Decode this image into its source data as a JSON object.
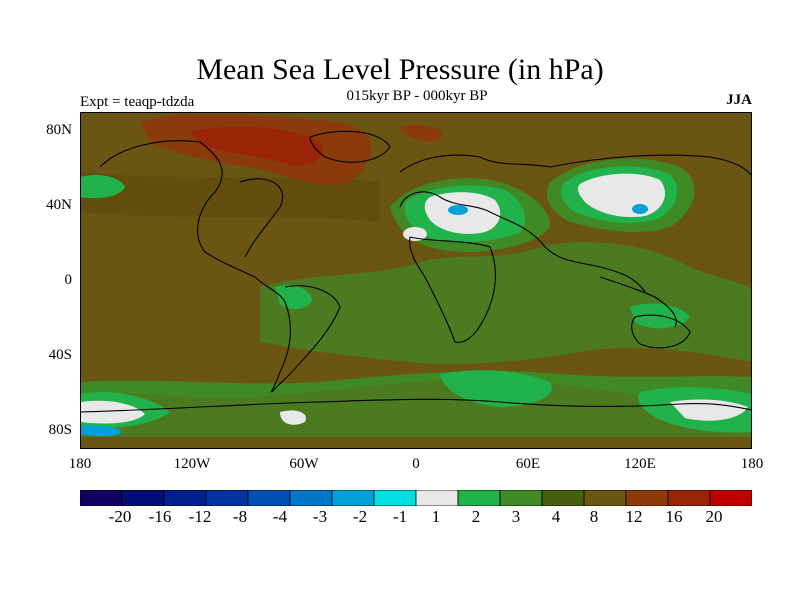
{
  "map": {
    "title": "Mean Sea Level Pressure (in hPa)",
    "subtitle": "015kyr BP - 000kyr BP",
    "experiment_label": "Expt = teaqp-tdzda",
    "season_label": "JJA",
    "lat_labels": [
      "80N",
      "40N",
      "0",
      "40S",
      "80S"
    ],
    "lon_labels": [
      "180",
      "120W",
      "60W",
      "0",
      "60E",
      "120E",
      "180"
    ],
    "colors": {
      "background_field": "#6b5512",
      "dark_green": "#3f7a24",
      "mid_green": "#4c8a25",
      "bright_green": "#22b24c",
      "near_zero": "#e8e8e8",
      "cyan": "#00e0e0",
      "blue": "#0090d0",
      "brown_red": "#8b3a0c",
      "red": "#a0220e"
    }
  },
  "colorbar": {
    "colors": [
      "#100060",
      "#000e78",
      "#00208e",
      "#0033a0",
      "#0050b4",
      "#0078c8",
      "#00a0d8",
      "#00e0e0",
      "#e8e8e8",
      "#22b24c",
      "#3f8a25",
      "#485f10",
      "#6b5512",
      "#8b3a0c",
      "#9a2408",
      "#c00000"
    ],
    "tick_labels": [
      "-20",
      "-16",
      "-12",
      "-8",
      "-4",
      "-3",
      "-2",
      "-1",
      "1",
      "2",
      "3",
      "4",
      "8",
      "12",
      "16",
      "20"
    ]
  }
}
